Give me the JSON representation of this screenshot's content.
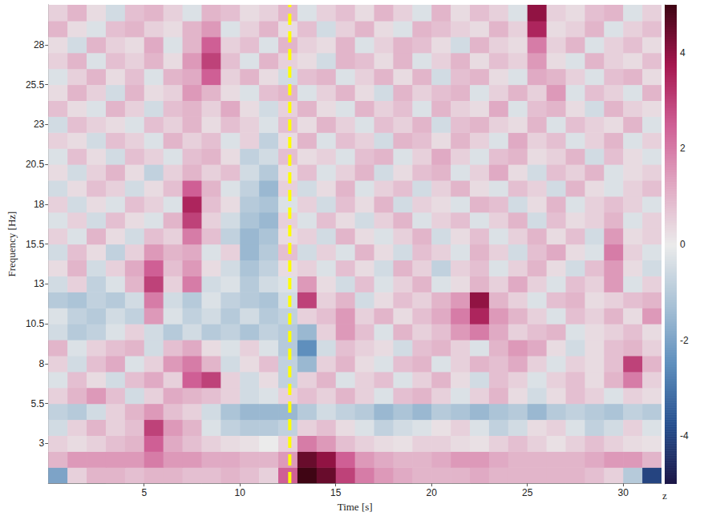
{
  "chart_data": {
    "type": "heatmap",
    "x_label": "Time [s]",
    "y_label": "Frequency [Hz]",
    "x": [
      0.5,
      1.5,
      2.5,
      3.5,
      4.5,
      5.5,
      6.5,
      7.5,
      8.5,
      9.5,
      10.5,
      11.5,
      12.5,
      13.5,
      14.5,
      15.5,
      16.5,
      17.5,
      18.5,
      19.5,
      20.5,
      21.5,
      22.5,
      23.5,
      24.5,
      25.5,
      26.5,
      27.5,
      28.5,
      29.5,
      30.5,
      31.5
    ],
    "y": [
      1,
      2,
      3,
      4,
      5,
      6,
      7,
      8,
      9,
      10,
      11,
      12,
      13,
      14,
      15,
      16,
      17,
      18,
      19,
      20,
      21,
      22,
      23,
      24,
      25,
      26,
      27,
      28,
      29,
      30
    ],
    "z": [
      [
        -2,
        0.5,
        1,
        1,
        0.8,
        1,
        1,
        0.8,
        0.8,
        1,
        0.8,
        0.5,
        2.5,
        5,
        4.5,
        3,
        2,
        1.5,
        1.2,
        1,
        1,
        1,
        1.2,
        1,
        1,
        1,
        1,
        1,
        0.8,
        0.5,
        -1,
        -4
      ],
      [
        1,
        1.5,
        1.5,
        1.5,
        1.5,
        2,
        1.5,
        1.5,
        1.2,
        1.2,
        1,
        1,
        1.5,
        4.5,
        4,
        2.5,
        1.5,
        1.2,
        1,
        1,
        1.2,
        1.5,
        1.5,
        1.2,
        1,
        1,
        1,
        1,
        1.2,
        1.5,
        1.5,
        1
      ],
      [
        0.5,
        0.3,
        0.5,
        0.8,
        1,
        2.5,
        1.2,
        0.8,
        0.5,
        0.3,
        0.2,
        0,
        0.5,
        2,
        1.5,
        0.8,
        0.5,
        0.3,
        0.2,
        0.5,
        0.5,
        0.3,
        0.2,
        0.5,
        0.8,
        0.5,
        0.2,
        0.5,
        0.8,
        0.5,
        0.3,
        0.2
      ],
      [
        -0.5,
        0.5,
        1,
        0.5,
        0.8,
        3,
        1.5,
        1,
        -0.3,
        -0.8,
        -1,
        -1,
        -0.8,
        0.5,
        0.8,
        0.3,
        -0.3,
        -0.8,
        -0.5,
        -0.3,
        0.2,
        0.5,
        -0.3,
        -0.8,
        -0.5,
        0.3,
        0.5,
        -0.3,
        -0.8,
        -0.5,
        0.5,
        -0.3
      ],
      [
        -0.8,
        -1,
        -0.5,
        0.5,
        1,
        1.5,
        0.8,
        0.5,
        -0.5,
        -1.2,
        -1.5,
        -1.5,
        -1.5,
        -1,
        -0.5,
        -0.8,
        -1,
        -1.5,
        -1.2,
        -1.5,
        -1,
        -1.2,
        -1.5,
        -1.2,
        -1,
        -1.5,
        -1,
        -0.8,
        -1,
        -1.2,
        -0.8,
        -1
      ],
      [
        0.5,
        1,
        1.5,
        0.8,
        -0.5,
        0.5,
        1.2,
        1,
        0.8,
        0.5,
        -0.5,
        -0.3,
        0.5,
        0.8,
        0.5,
        1,
        0.5,
        -0.3,
        0.8,
        1,
        0.5,
        -0.3,
        0.5,
        1,
        0.3,
        -0.5,
        0.3,
        0.8,
        0.5,
        -0.3,
        0.5,
        0.3
      ],
      [
        -0.3,
        0.8,
        0.3,
        -0.5,
        0.8,
        1.2,
        0.5,
        2.5,
        3,
        0.5,
        -0.5,
        0.3,
        -0.8,
        0.5,
        1,
        -0.3,
        0.5,
        0.8,
        -0.3,
        0.5,
        1,
        0.3,
        -0.5,
        0.8,
        0.5,
        -0.3,
        0.5,
        0.8,
        0.3,
        1,
        2,
        0.5
      ],
      [
        0.5,
        -0.5,
        0.8,
        1.2,
        -0.3,
        0.5,
        1.5,
        2,
        1,
        -0.5,
        0.3,
        0.8,
        -0.8,
        -1.5,
        0.5,
        1,
        0.3,
        -0.3,
        0.8,
        1,
        -0.3,
        0.5,
        1,
        0.8,
        1.2,
        0.5,
        -0.3,
        0.5,
        0.3,
        0.8,
        3,
        1
      ],
      [
        1,
        -0.3,
        0.5,
        0.8,
        1,
        -0.5,
        0.8,
        1.2,
        0.3,
        -0.3,
        0.5,
        -0.3,
        -1,
        -2.5,
        -0.5,
        0.8,
        0.5,
        0.3,
        -0.5,
        0.8,
        1,
        0.5,
        -0.3,
        1,
        1.5,
        1.2,
        0.3,
        -0.5,
        0.3,
        0.8,
        1,
        0.5
      ],
      [
        -0.5,
        -1,
        -0.8,
        -0.3,
        0.5,
        -0.5,
        -1,
        -0.5,
        -1,
        -0.8,
        -1.2,
        -0.8,
        -1,
        -1.5,
        0.5,
        1.5,
        0.8,
        -0.3,
        1,
        0.5,
        0.8,
        1.5,
        2,
        1.2,
        0.5,
        0.8,
        1,
        -0.3,
        0.3,
        0.5,
        0.8,
        0.3
      ],
      [
        -0.3,
        -0.8,
        -1,
        -0.5,
        -0.8,
        1.5,
        -0.3,
        -0.8,
        -0.5,
        -1,
        -0.5,
        -1,
        -0.8,
        0.5,
        0.8,
        1.5,
        0.5,
        1,
        0.3,
        0.8,
        1.2,
        2,
        3.5,
        1.5,
        1,
        0.5,
        -0.3,
        0.8,
        0.5,
        1,
        0.3,
        1.5
      ],
      [
        -1,
        -1.2,
        -0.8,
        -1,
        -0.5,
        2,
        -0.5,
        -1,
        -0.3,
        -0.8,
        -1,
        -1.2,
        -0.5,
        3,
        0.5,
        1,
        -0.5,
        0.3,
        0.8,
        0.5,
        1,
        1.5,
        4,
        1,
        0.5,
        -0.3,
        0.8,
        1,
        0.3,
        0.5,
        0.8,
        1
      ],
      [
        -0.5,
        0.5,
        -0.8,
        -0.3,
        1,
        3,
        0.5,
        2,
        -0.5,
        -0.3,
        -1,
        -0.5,
        -0.3,
        1.5,
        0.3,
        -0.5,
        0.8,
        -0.3,
        0.5,
        1,
        -0.3,
        0.3,
        1,
        0.5,
        1.2,
        0.5,
        -0.3,
        0.8,
        0.5,
        1.5,
        -0.3,
        0.5
      ],
      [
        0.3,
        1,
        -0.5,
        0.5,
        1.2,
        2.5,
        0.8,
        1.5,
        0.3,
        -0.5,
        -1.2,
        -0.8,
        0.3,
        0.5,
        -0.3,
        0.8,
        0.3,
        -0.5,
        1,
        0.5,
        -0.8,
        0.5,
        0.8,
        -0.3,
        0.5,
        1,
        0.3,
        -0.5,
        0.8,
        1.5,
        0.3,
        -0.5
      ],
      [
        -0.5,
        0.8,
        0.3,
        -0.8,
        0.5,
        1.5,
        1,
        1.2,
        -0.3,
        0.5,
        -1.5,
        -1,
        0.8,
        -0.5,
        0.5,
        -0.3,
        1,
        0.3,
        -0.5,
        0.8,
        0.5,
        -0.3,
        1,
        0.5,
        -0.5,
        0.8,
        1.2,
        0.3,
        -0.3,
        2,
        0.5,
        -0.3
      ],
      [
        0.5,
        -0.3,
        1,
        0.3,
        -0.5,
        0.8,
        0.5,
        2,
        0.8,
        -0.8,
        -1.5,
        -1.2,
        0.3,
        0.5,
        -0.5,
        1,
        0.3,
        -0.3,
        0.5,
        1,
        -0.5,
        0.3,
        0.8,
        -0.3,
        0.5,
        1,
        0.3,
        0.8,
        -0.5,
        1.5,
        0.3,
        0.5
      ],
      [
        -0.3,
        0.5,
        -0.5,
        0.8,
        0.3,
        -0.3,
        1,
        3,
        0.5,
        -0.5,
        -1.2,
        -1.5,
        0.5,
        -0.3,
        0.8,
        0.3,
        -0.5,
        0.5,
        1,
        -0.3,
        0.5,
        0.8,
        -0.3,
        0.5,
        1,
        -0.5,
        0.8,
        0.3,
        0.5,
        1,
        -0.3,
        0.5
      ],
      [
        0.5,
        -0.5,
        0.3,
        -0.3,
        0.8,
        0.5,
        -0.3,
        3.5,
        0.8,
        0.3,
        -1,
        -1.2,
        -0.3,
        0.5,
        -0.5,
        0.8,
        0.3,
        1,
        -0.5,
        0.5,
        0.3,
        -0.3,
        1,
        0.8,
        -0.5,
        0.3,
        1,
        -0.3,
        0.5,
        0.8,
        0.5,
        -0.3
      ],
      [
        -0.5,
        0.3,
        0.8,
        0.5,
        -0.5,
        0.3,
        0.8,
        2.5,
        1,
        -0.3,
        -0.8,
        -1.5,
        0.5,
        -0.5,
        0.3,
        1,
        -0.3,
        0.5,
        0.8,
        -0.5,
        0.5,
        1,
        0.3,
        -0.3,
        0.8,
        0.5,
        -0.5,
        1,
        0.3,
        -0.3,
        0.5,
        0.8
      ],
      [
        0.3,
        -0.5,
        0.5,
        1,
        0.3,
        -0.8,
        0.5,
        1,
        0.5,
        0.8,
        -0.5,
        -1,
        0.3,
        0.8,
        -0.3,
        0.5,
        1,
        -0.5,
        0.3,
        0.8,
        1,
        -0.3,
        0.5,
        1.2,
        0.3,
        -0.5,
        0.8,
        0.5,
        1,
        -0.3,
        0.3,
        0.5
      ],
      [
        -0.3,
        0.8,
        0.3,
        -0.5,
        0.8,
        0.5,
        -0.3,
        0.8,
        1,
        0.3,
        -0.8,
        -0.5,
        0.8,
        0.3,
        0.5,
        -0.3,
        0.8,
        1,
        -0.3,
        0.5,
        1.2,
        0.5,
        -0.3,
        0.8,
        1,
        0.3,
        0.5,
        1,
        -0.5,
        0.8,
        0.3,
        -0.3
      ],
      [
        0.5,
        0.3,
        -0.5,
        0.8,
        0.5,
        -0.3,
        1,
        0.5,
        0.8,
        -0.3,
        0.5,
        -0.8,
        0.3,
        1,
        -0.3,
        0.8,
        0.5,
        -0.5,
        1,
        0.8,
        0.3,
        1,
        0.5,
        -0.3,
        1.2,
        0.5,
        0.8,
        -0.3,
        0.5,
        1,
        -0.3,
        0.5
      ],
      [
        -0.5,
        0.8,
        0.5,
        0.3,
        -0.3,
        0.8,
        0.5,
        1,
        0.3,
        0.8,
        0.5,
        -0.3,
        0.8,
        0.3,
        1,
        0.5,
        -0.3,
        0.8,
        0.5,
        1,
        -0.5,
        0.8,
        1,
        0.5,
        0.3,
        1,
        -0.3,
        0.8,
        0.5,
        0.3,
        1,
        -0.3
      ],
      [
        0.8,
        0.3,
        -0.3,
        1,
        0.5,
        -0.5,
        0.8,
        1,
        0.5,
        1.2,
        0.3,
        -0.5,
        0.5,
        1,
        0.3,
        -0.3,
        1,
        0.5,
        0.8,
        -0.3,
        1,
        0.5,
        0.3,
        1.2,
        -0.3,
        0.8,
        1,
        0.3,
        -0.5,
        1,
        0.5,
        0.3
      ],
      [
        0.3,
        1,
        0.5,
        -0.5,
        1,
        0.3,
        0.5,
        1.5,
        1,
        0.3,
        -0.3,
        0.8,
        1,
        -0.3,
        0.5,
        1,
        0.3,
        -0.5,
        1,
        0.5,
        0.8,
        1,
        -0.3,
        0.5,
        1,
        0.5,
        1.5,
        -0.3,
        0.8,
        0.5,
        -0.3,
        1
      ],
      [
        -0.3,
        0.5,
        1,
        0.3,
        0.8,
        -0.3,
        1,
        1.2,
        2.5,
        0.5,
        1,
        0.3,
        -0.5,
        0.8,
        1,
        -0.3,
        0.5,
        1,
        0.3,
        1,
        -0.5,
        0.8,
        1,
        0.3,
        -0.3,
        1.2,
        1,
        0.5,
        -0.3,
        0.8,
        1,
        0.3
      ],
      [
        0.5,
        1,
        -0.3,
        0.8,
        0.5,
        1,
        0.3,
        1.5,
        3,
        0.8,
        -0.3,
        1,
        0.5,
        0.3,
        -0.5,
        1,
        0.8,
        0.3,
        1,
        -0.3,
        0.5,
        1,
        0.3,
        0.8,
        0.5,
        1.5,
        0.3,
        -0.3,
        1,
        0.5,
        0.3,
        0.8
      ],
      [
        0.3,
        -0.5,
        1,
        0.5,
        0.3,
        1.2,
        -0.3,
        1,
        2.5,
        0.5,
        0.8,
        -0.3,
        1,
        0.5,
        0.3,
        1,
        -0.3,
        0.5,
        1,
        0.8,
        0.3,
        -0.5,
        1,
        0.5,
        0.3,
        2,
        0.5,
        1,
        -0.3,
        0.5,
        0.8,
        0.3
      ],
      [
        1,
        0.3,
        -0.3,
        0.8,
        1,
        0.5,
        0.3,
        1,
        1.5,
        -0.3,
        0.5,
        1,
        0.3,
        0.8,
        -0.5,
        0.5,
        1,
        0.3,
        -0.3,
        1,
        0.8,
        0.5,
        0.3,
        1,
        0.5,
        3.5,
        0.3,
        0.5,
        1,
        -0.3,
        0.5,
        0.8
      ],
      [
        0.5,
        1,
        0.3,
        -0.5,
        0.8,
        1,
        0.5,
        -0.3,
        1,
        0.8,
        0.3,
        0.5,
        1,
        -0.3,
        0.5,
        0.8,
        0.3,
        1,
        0.5,
        -0.3,
        1,
        0.3,
        0.8,
        0.5,
        -0.3,
        4,
        0.5,
        0.3,
        0.8,
        1,
        -0.3,
        0.5
      ]
    ],
    "xlim": [
      0,
      32
    ],
    "xticks": [
      5,
      10,
      15,
      20,
      25,
      30
    ],
    "ylim": [
      0.5,
      30.5
    ],
    "yticks": [
      3,
      5.5,
      8,
      10.5,
      13,
      15.5,
      18,
      20.5,
      23,
      25.5,
      28
    ],
    "colorbar": {
      "label": "z",
      "range": [
        -5,
        5
      ],
      "ticks": [
        -4,
        -2,
        0,
        2,
        4
      ]
    },
    "vline": {
      "x": 12.6,
      "color": "#ffff00",
      "line_style": "dashed"
    }
  }
}
